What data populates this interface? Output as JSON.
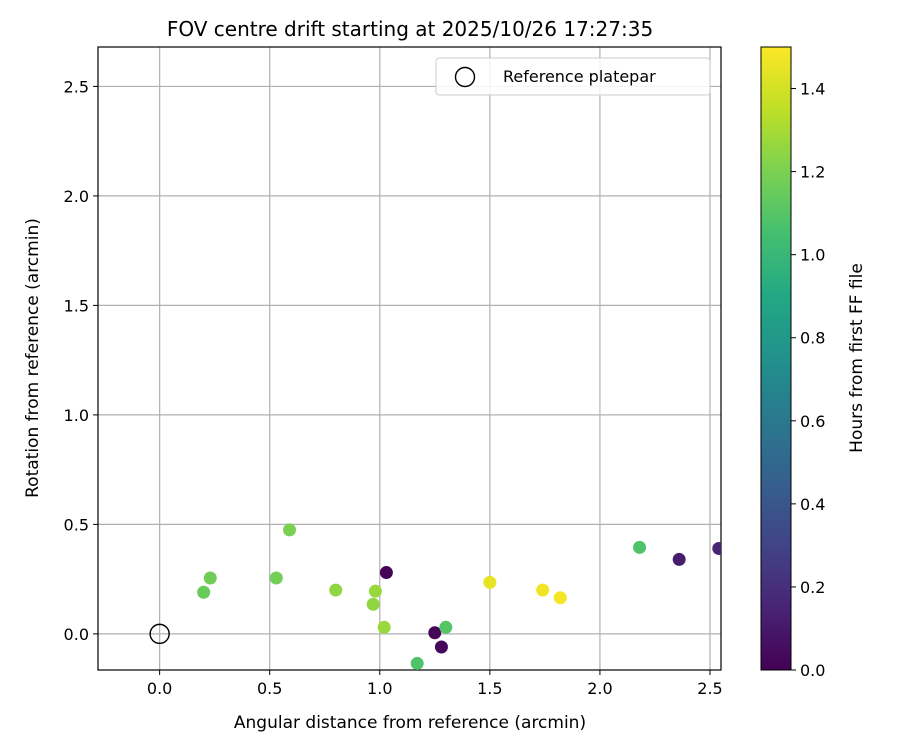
{
  "chart_data": {
    "type": "scatter",
    "title": "FOV centre drift starting at 2025/10/26 17:27:35",
    "xlabel": "Angular distance from reference (arcmin)",
    "ylabel": "Rotation from reference (arcmin)",
    "xlim": [
      -0.28,
      2.55
    ],
    "ylim": [
      -0.165,
      2.68
    ],
    "xticks": [
      "0.0",
      "0.5",
      "1.0",
      "1.5",
      "2.0",
      "2.5"
    ],
    "yticks": [
      "0.0",
      "0.5",
      "1.0",
      "1.5",
      "2.0",
      "2.5"
    ],
    "grid": true,
    "legend": {
      "position": "top-right",
      "entries": [
        "Reference platepar"
      ]
    },
    "reference_point": {
      "x": 0.0,
      "y": 0.0
    },
    "colorbar": {
      "label": "Hours from first FF file",
      "colormap": "viridis",
      "range": [
        0.0,
        1.5
      ],
      "ticks": [
        "0.0",
        "0.2",
        "0.4",
        "0.6",
        "0.8",
        "1.0",
        "1.2",
        "1.4"
      ]
    },
    "points": [
      {
        "x": 1.03,
        "y": 0.28,
        "hours": 0.01
      },
      {
        "x": 1.25,
        "y": 0.005,
        "hours": 0.02
      },
      {
        "x": 1.28,
        "y": -0.06,
        "hours": 0.03
      },
      {
        "x": 2.36,
        "y": 0.34,
        "hours": 0.12
      },
      {
        "x": 2.54,
        "y": 0.39,
        "hours": 0.15
      },
      {
        "x": 2.18,
        "y": 0.395,
        "hours": 1.08
      },
      {
        "x": 1.3,
        "y": 0.03,
        "hours": 1.1
      },
      {
        "x": 1.17,
        "y": -0.135,
        "hours": 1.08
      },
      {
        "x": 0.2,
        "y": 0.19,
        "hours": 1.15
      },
      {
        "x": 0.23,
        "y": 0.255,
        "hours": 1.17
      },
      {
        "x": 0.53,
        "y": 0.255,
        "hours": 1.18
      },
      {
        "x": 0.59,
        "y": 0.475,
        "hours": 1.2
      },
      {
        "x": 0.8,
        "y": 0.2,
        "hours": 1.25
      },
      {
        "x": 0.97,
        "y": 0.135,
        "hours": 1.25
      },
      {
        "x": 0.98,
        "y": 0.195,
        "hours": 1.27
      },
      {
        "x": 1.02,
        "y": 0.03,
        "hours": 1.27
      },
      {
        "x": 1.5,
        "y": 0.235,
        "hours": 1.45
      },
      {
        "x": 1.74,
        "y": 0.2,
        "hours": 1.47
      },
      {
        "x": 1.82,
        "y": 0.165,
        "hours": 1.48
      }
    ]
  }
}
